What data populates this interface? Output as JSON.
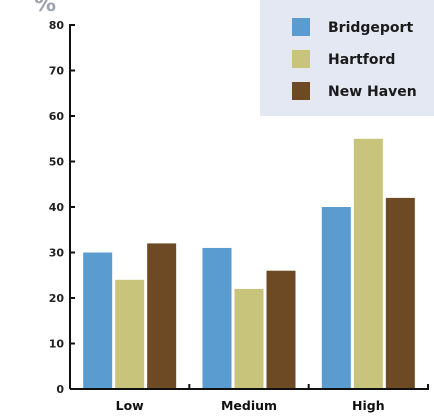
{
  "chart_data": {
    "type": "bar",
    "ylabel": "%",
    "categories": [
      "Low",
      "Medium",
      "High"
    ],
    "series": [
      {
        "name": "Bridgeport",
        "color": "#5a9bd0",
        "values": [
          30,
          31,
          40
        ]
      },
      {
        "name": "Hartford",
        "color": "#c9c47c",
        "values": [
          24,
          22,
          55
        ]
      },
      {
        "name": "New Haven",
        "color": "#6e4a24",
        "values": [
          32,
          26,
          42
        ]
      }
    ],
    "ylim": [
      0,
      80
    ],
    "yticks": [
      0,
      10,
      20,
      30,
      40,
      50,
      60,
      70,
      80
    ],
    "grid": false,
    "legend_position": "top-right",
    "legend_background": "#e3e8f3"
  }
}
